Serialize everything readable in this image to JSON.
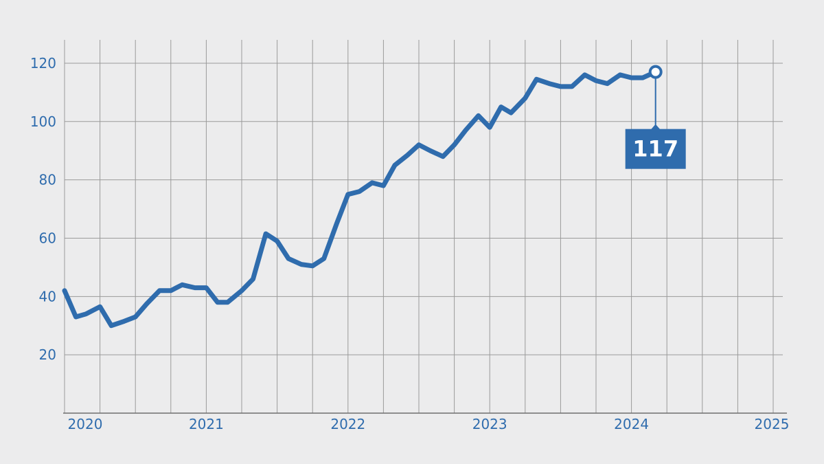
{
  "chart_data": {
    "type": "line",
    "title": "",
    "xlabel": "",
    "ylabel": "",
    "xlim": [
      2020,
      2025
    ],
    "ylim": [
      0,
      128
    ],
    "x_ticks": [
      2020,
      2021,
      2022,
      2023,
      2024,
      2025
    ],
    "x_tick_labels": [
      "2020",
      "2021",
      "2022",
      "2023",
      "2024",
      "2025"
    ],
    "y_ticks": [
      20,
      40,
      60,
      80,
      100,
      120
    ],
    "y_tick_labels": [
      "20",
      "40",
      "60",
      "80",
      "100",
      "120"
    ],
    "grid": true,
    "legend": "none",
    "line_color": "#2f6cad",
    "callout": {
      "label": "117",
      "x": 2024.17,
      "y": 117
    },
    "series": [
      {
        "x": [
          2020.0,
          2020.08,
          2020.15,
          2020.25,
          2020.33,
          2020.42,
          2020.5,
          2020.58,
          2020.67,
          2020.75,
          2020.83,
          2020.92,
          2021.0,
          2021.08,
          2021.15,
          2021.25,
          2021.33,
          2021.42,
          2021.5,
          2021.58,
          2021.67,
          2021.75,
          2021.83,
          2021.92,
          2022.0,
          2022.08,
          2022.17,
          2022.25,
          2022.33,
          2022.42,
          2022.5,
          2022.58,
          2022.67,
          2022.75,
          2022.83,
          2022.92,
          2023.0,
          2023.08,
          2023.15,
          2023.25,
          2023.33,
          2023.42,
          2023.5,
          2023.58,
          2023.67,
          2023.75,
          2023.83,
          2023.92,
          2024.0,
          2024.08,
          2024.17
        ],
        "values": [
          42,
          33,
          34,
          36.5,
          30,
          31.5,
          33,
          37.5,
          42,
          42,
          44,
          43,
          43,
          38,
          38,
          42,
          46,
          61.5,
          59,
          53,
          51,
          50.5,
          53,
          65,
          75,
          76,
          79,
          78,
          85,
          88.5,
          92,
          90,
          88,
          92,
          97,
          102,
          98,
          105,
          103,
          108,
          114.5,
          113,
          112,
          112,
          116,
          114,
          113,
          116,
          115,
          115,
          117
        ]
      }
    ]
  }
}
